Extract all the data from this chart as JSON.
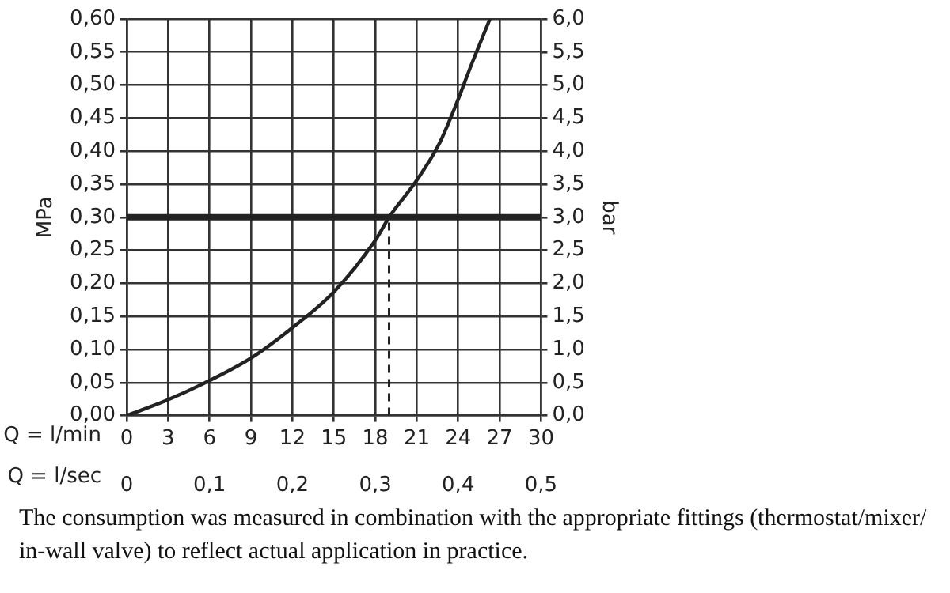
{
  "chart_data": {
    "type": "line",
    "xlabel": "Q = l/min",
    "ylabel": "MPa",
    "y2label": "bar",
    "x2label": "Q = l/sec",
    "x": [
      0,
      3,
      6,
      9,
      12,
      15,
      18,
      19,
      21,
      22.6,
      23.8,
      25,
      26.3
    ],
    "series": [
      {
        "color": "#222222",
        "values": [
          0,
          0.024,
          0.053,
          0.087,
          0.133,
          0.187,
          0.265,
          0.3,
          0.356,
          0.41,
          0.468,
          0.533,
          0.6
        ]
      }
    ],
    "xlim": [
      0,
      30
    ],
    "xticks": [
      0,
      3,
      6,
      9,
      12,
      15,
      18,
      21,
      24,
      27,
      30
    ],
    "ylim": [
      0,
      0.6
    ],
    "yticks": [
      {
        "value": 0,
        "label": "0,00"
      },
      {
        "value": 0.05,
        "label": "0,05"
      },
      {
        "value": 0.1,
        "label": "0,10"
      },
      {
        "value": 0.15,
        "label": "0,15"
      },
      {
        "value": 0.2,
        "label": "0,20"
      },
      {
        "value": 0.25,
        "label": "0,25"
      },
      {
        "value": 0.3,
        "label": "0,30"
      },
      {
        "value": 0.35,
        "label": "0,35"
      },
      {
        "value": 0.4,
        "label": "0,40"
      },
      {
        "value": 0.45,
        "label": "0,45"
      },
      {
        "value": 0.5,
        "label": "0,50"
      },
      {
        "value": 0.55,
        "label": "0,55"
      },
      {
        "value": 0.6,
        "label": "0,60"
      }
    ],
    "y2lim": [
      0,
      6
    ],
    "y2ticks": [
      {
        "value": 0,
        "label": "0,0"
      },
      {
        "value": 0.5,
        "label": "0,5"
      },
      {
        "value": 1,
        "label": "1,0"
      },
      {
        "value": 1.5,
        "label": "1,5"
      },
      {
        "value": 2,
        "label": "2,0"
      },
      {
        "value": 2.5,
        "label": "2,5"
      },
      {
        "value": 3,
        "label": "3,0"
      },
      {
        "value": 3.5,
        "label": "3,5"
      },
      {
        "value": 4,
        "label": "4,0"
      },
      {
        "value": 4.5,
        "label": "4,5"
      },
      {
        "value": 5,
        "label": "5,0"
      },
      {
        "value": 5.5,
        "label": "5,5"
      },
      {
        "value": 6,
        "label": "6,0"
      }
    ],
    "x2lim": [
      0,
      0.5
    ],
    "x2ticks": [
      0,
      {
        "value": 0.1,
        "label": "0,1"
      },
      {
        "value": 0.2,
        "label": "0,2"
      },
      {
        "value": 0.3,
        "label": "0,3"
      },
      {
        "value": 0.4,
        "label": "0,4"
      },
      {
        "value": 0.5,
        "label": "0,5"
      }
    ],
    "ref_lines": [
      {
        "axis": "y",
        "value": 0.3,
        "color": "#222222",
        "line_style": "solid"
      },
      {
        "axis": "x",
        "value": 19,
        "color": "#222222",
        "line_style": "dashed"
      }
    ],
    "grid": true,
    "legend": false,
    "marker": "none",
    "line_style": "solid",
    "annotations": [
      "The consumption was measured in combination with the appropriate fittings (thermostat/mixer/ in-wall valve) to reflect actual application in practice."
    ]
  }
}
